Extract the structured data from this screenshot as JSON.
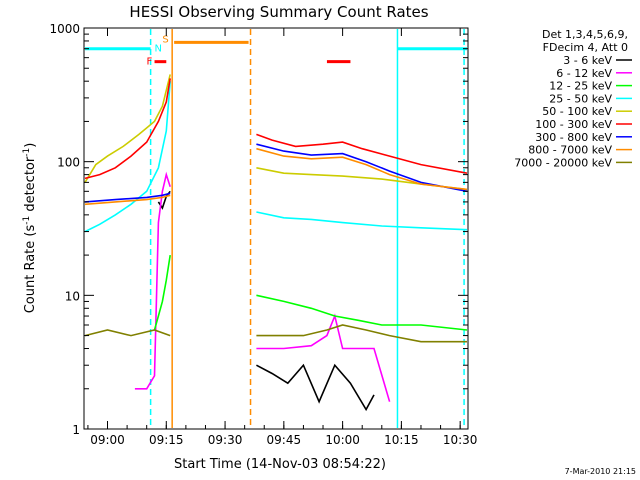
{
  "chart_data": {
    "type": "line",
    "title": "HESSI Observing Summary Count Rates",
    "xlabel": "Start Time (14-Nov-03 08:54:22)",
    "ylabel_prefix": "Count Rate (s",
    "ylabel_sup1": "-1",
    "ylabel_middle": " detector",
    "ylabel_sup2": "-1",
    "ylabel_suffix": ")",
    "y_scale": "log",
    "ylim": [
      1,
      1000
    ],
    "xlim": [
      "08:54",
      "10:32"
    ],
    "x_ticks": [
      "09:00",
      "09:15",
      "09:30",
      "09:45",
      "10:00",
      "10:15",
      "10:30"
    ],
    "y_ticks": [
      "1",
      "10",
      "100",
      "1000"
    ],
    "legend_header": [
      "Det 1,3,4,5,6,9,",
      "FDecim 4, Att 0"
    ],
    "legend_placement": "right",
    "series": [
      {
        "name": "3 - 6 keV",
        "color": "#000000",
        "segments": [
          {
            "x": [
              "09:13",
              "09:14",
              "09:15",
              "09:16"
            ],
            "y": [
              50,
              45,
              55,
              60
            ]
          },
          {
            "x": [
              "09:38",
              "09:42",
              "09:46",
              "09:50",
              "09:54",
              "09:58",
              "10:02",
              "10:06",
              "10:08"
            ],
            "y": [
              3,
              2.6,
              2.2,
              3,
              1.6,
              3,
              2.2,
              1.4,
              1.8
            ]
          }
        ]
      },
      {
        "name": "6 - 12 keV",
        "color": "#ff00ff",
        "segments": [
          {
            "x": [
              "09:07",
              "09:10",
              "09:12",
              "09:13",
              "09:14",
              "09:15",
              "09:16"
            ],
            "y": [
              2,
              2,
              2.5,
              35,
              60,
              80,
              65
            ]
          },
          {
            "x": [
              "09:38",
              "09:45",
              "09:52",
              "09:56",
              "09:58",
              "10:00",
              "10:04",
              "10:08",
              "10:12"
            ],
            "y": [
              4,
              4,
              4.2,
              5,
              7,
              4,
              4,
              4,
              1.6
            ]
          }
        ]
      },
      {
        "name": "12 - 25 keV",
        "color": "#00ff00",
        "segments": [
          {
            "x": [
              "09:12",
              "09:13",
              "09:14",
              "09:15",
              "09:16"
            ],
            "y": [
              5.5,
              7,
              9,
              13,
              20
            ]
          },
          {
            "x": [
              "09:38",
              "09:45",
              "09:52",
              "09:58",
              "10:04",
              "10:10",
              "10:20",
              "10:32"
            ],
            "y": [
              10,
              9,
              8,
              7,
              6.5,
              6,
              6,
              5.5
            ]
          }
        ]
      },
      {
        "name": "25 - 50 keV",
        "color": "#00ffff",
        "segments": [
          {
            "x": [
              "08:54",
              "08:58",
              "09:02",
              "09:06",
              "09:10",
              "09:13",
              "09:15",
              "09:16"
            ],
            "y": [
              30,
              34,
              40,
              48,
              60,
              90,
              170,
              400
            ]
          },
          {
            "x": [
              "09:38",
              "09:45",
              "09:52",
              "10:00",
              "10:10",
              "10:20",
              "10:32"
            ],
            "y": [
              42,
              38,
              37,
              35,
              33,
              32,
              31
            ]
          }
        ]
      },
      {
        "name": "50 - 100 keV",
        "color": "#cccc00",
        "segments": [
          {
            "x": [
              "08:54",
              "08:57",
              "09:00",
              "09:04",
              "09:08",
              "09:12",
              "09:14",
              "09:16"
            ],
            "y": [
              70,
              95,
              110,
              130,
              160,
              200,
              260,
              450
            ]
          },
          {
            "x": [
              "09:38",
              "09:45",
              "09:52",
              "10:00",
              "10:10",
              "10:20",
              "10:32"
            ],
            "y": [
              90,
              82,
              80,
              78,
              74,
              68,
              62
            ]
          }
        ]
      },
      {
        "name": "100 - 300 keV",
        "color": "#ff0000",
        "segments": [
          {
            "x": [
              "08:54",
              "08:58",
              "09:02",
              "09:06",
              "09:10",
              "09:13",
              "09:15",
              "09:16"
            ],
            "y": [
              75,
              80,
              90,
              110,
              140,
              200,
              280,
              420
            ]
          },
          {
            "x": [
              "09:38",
              "09:42",
              "09:48",
              "09:55",
              "10:00",
              "10:05",
              "10:12",
              "10:20",
              "10:32"
            ],
            "y": [
              160,
              145,
              130,
              135,
              140,
              125,
              110,
              95,
              82
            ]
          }
        ]
      },
      {
        "name": "300 - 800 keV",
        "color": "#0000ff",
        "segments": [
          {
            "x": [
              "08:54",
              "09:02",
              "09:10",
              "09:14",
              "09:16"
            ],
            "y": [
              50,
              52,
              54,
              56,
              58
            ]
          },
          {
            "x": [
              "09:38",
              "09:45",
              "09:52",
              "10:00",
              "10:06",
              "10:12",
              "10:20",
              "10:32"
            ],
            "y": [
              135,
              120,
              112,
              115,
              100,
              85,
              70,
              60
            ]
          }
        ]
      },
      {
        "name": "800 - 7000 keV",
        "color": "#ff8c00",
        "segments": [
          {
            "x": [
              "08:54",
              "09:02",
              "09:10",
              "09:14",
              "09:16"
            ],
            "y": [
              48,
              50,
              52,
              54,
              56
            ]
          },
          {
            "x": [
              "09:38",
              "09:45",
              "09:52",
              "10:00",
              "10:06",
              "10:12",
              "10:20",
              "10:32"
            ],
            "y": [
              125,
              110,
              105,
              108,
              95,
              80,
              68,
              62
            ]
          }
        ]
      },
      {
        "name": "7000 - 20000 keV",
        "color": "#808000",
        "segments": [
          {
            "x": [
              "08:54",
              "09:00",
              "09:06",
              "09:12",
              "09:16"
            ],
            "y": [
              5,
              5.5,
              5,
              5.5,
              5
            ]
          },
          {
            "x": [
              "09:38",
              "09:44",
              "09:50",
              "09:56",
              "10:00",
              "10:06",
              "10:12",
              "10:20",
              "10:32"
            ],
            "y": [
              5,
              5,
              5,
              5.5,
              6,
              5.5,
              5,
              4.5,
              4.5
            ]
          }
        ]
      }
    ],
    "vertical_lines": [
      {
        "x": "09:11",
        "color": "#00ffff",
        "style": "dashed"
      },
      {
        "x": "09:16.5",
        "color": "#ff8c00",
        "style": "solid"
      },
      {
        "x": "09:36.5",
        "color": "#ff8c00",
        "style": "dashed"
      },
      {
        "x": "10:14",
        "color": "#00ffff",
        "style": "solid"
      },
      {
        "x": "10:31",
        "color": "#00ffff",
        "style": "dashed"
      }
    ],
    "flag_bars": [
      {
        "x_start": "08:54",
        "x_end": "09:11",
        "y": 700,
        "color": "#00ffff",
        "label": ""
      },
      {
        "x_start": "10:14",
        "x_end": "10:32",
        "y": 700,
        "color": "#00ffff",
        "label": ""
      },
      {
        "x_start": "09:17",
        "x_end": "09:36",
        "y": 780,
        "color": "#ff8c00",
        "label": ""
      },
      {
        "x_start": "09:12",
        "x_end": "09:15",
        "y": 560,
        "color": "#ff0000",
        "label": "F"
      },
      {
        "x_start": "09:56",
        "x_end": "10:02",
        "y": 560,
        "color": "#ff0000",
        "label": ""
      }
    ],
    "flag_labels": [
      {
        "text": "N",
        "x": "09:12",
        "y": 700,
        "color": "#00ffff"
      },
      {
        "text": "S",
        "x": "09:14",
        "y": 820,
        "color": "#ff8c00"
      }
    ],
    "footer_text": "7-Mar-2010 21:15"
  }
}
